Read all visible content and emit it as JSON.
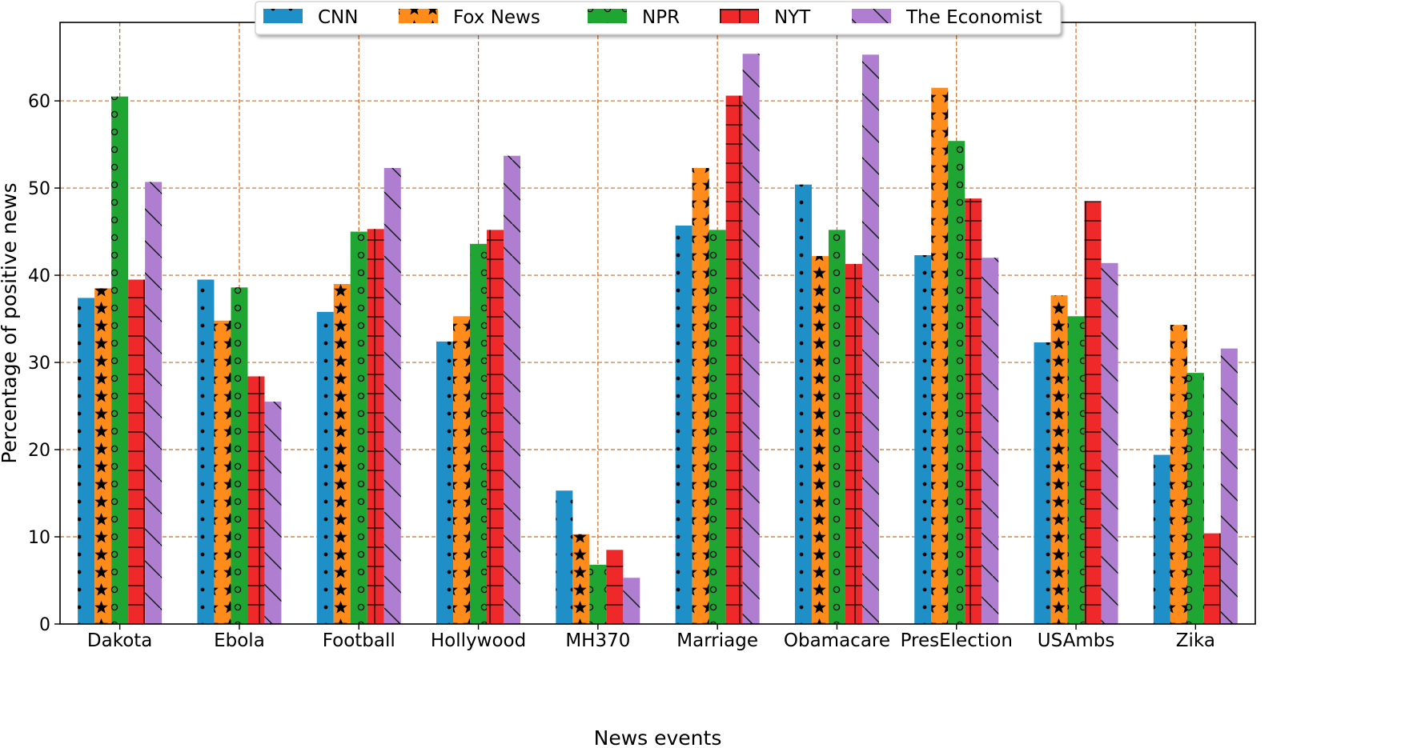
{
  "chart_data": {
    "type": "bar",
    "xlabel": "News events",
    "ylabel": "Percentage of positive news",
    "ylim": [
      0,
      69
    ],
    "yticks": [
      0,
      10,
      20,
      30,
      40,
      50,
      60
    ],
    "grid": true,
    "legend_position": "top-center",
    "categories": [
      "Dakota",
      "Ebola",
      "Football",
      "Hollywood",
      "MH370",
      "Marriage",
      "Obamacare",
      "PresElection",
      "USAmbs",
      "Zika"
    ],
    "series": [
      {
        "name": "CNN",
        "color": "#1f8fc7",
        "pattern": "dots",
        "values": [
          37.4,
          39.5,
          35.8,
          32.4,
          15.3,
          45.7,
          50.4,
          42.3,
          32.3,
          19.4
        ]
      },
      {
        "name": "Fox News",
        "color": "#ff8c1a",
        "pattern": "stars",
        "values": [
          38.5,
          34.8,
          39.0,
          35.3,
          10.3,
          52.3,
          42.2,
          61.5,
          37.7,
          34.3
        ]
      },
      {
        "name": "NPR",
        "color": "#1ea532",
        "pattern": "circles",
        "values": [
          60.5,
          38.6,
          45.0,
          43.6,
          6.8,
          45.2,
          45.2,
          55.4,
          35.3,
          28.8
        ]
      },
      {
        "name": "NYT",
        "color": "#ef2929",
        "pattern": "grid",
        "values": [
          39.5,
          28.4,
          45.3,
          45.2,
          8.5,
          60.6,
          41.3,
          48.8,
          48.5,
          10.4
        ]
      },
      {
        "name": "The Economist",
        "color": "#b07ed0",
        "pattern": "diagonal",
        "values": [
          50.7,
          25.5,
          52.3,
          53.7,
          5.3,
          65.4,
          65.3,
          42.0,
          41.4,
          31.6
        ]
      }
    ]
  }
}
